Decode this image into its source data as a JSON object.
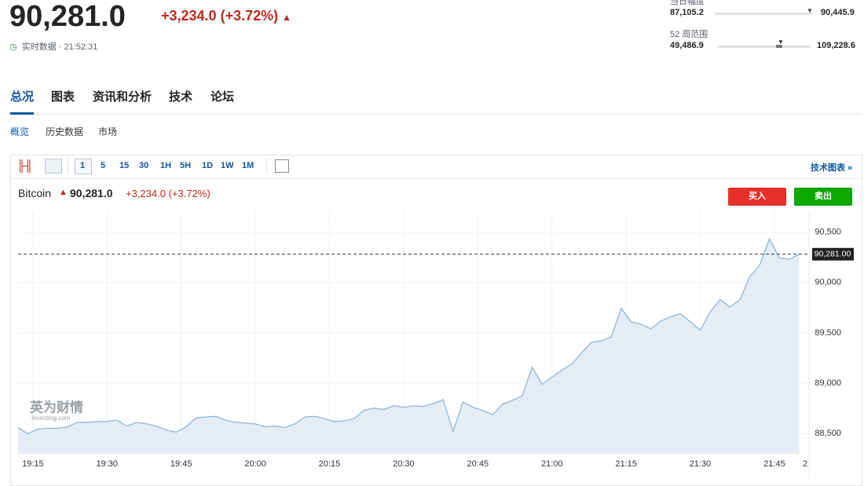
{
  "header": {
    "price": "90,281.0",
    "change": "+3,234.0 (+3.72%)",
    "status": "实时数据 · 21:52:31",
    "ranges": [
      {
        "label": "当日幅度",
        "low": "87,105.2",
        "high": "90,445.9"
      },
      {
        "label": "52 周范围",
        "low": "49,486.9",
        "high": "109,228.6"
      }
    ]
  },
  "tabs": [
    "总况",
    "图表",
    "资讯和分析",
    "技术",
    "论坛"
  ],
  "subtabs": [
    "概览",
    "历史数据",
    "市场"
  ],
  "toolbar": {
    "intervals": [
      "1",
      "5",
      "15",
      "30",
      "1H",
      "5H",
      "1D",
      "1W",
      "1M"
    ],
    "advanced": "技术图表 »"
  },
  "quote": {
    "name": "Bitcoin",
    "price": "90,281.0",
    "change": "+3,234.0 (+3.72%)"
  },
  "buttons": {
    "buy": "买入",
    "sell": "卖出"
  },
  "watermark": {
    "brand": "英为财情",
    "site": "Investing.com"
  },
  "chart_data": {
    "type": "area",
    "color": "#8fb6d6",
    "x": [
      "19:12",
      "19:14",
      "19:16",
      "19:18",
      "19:20",
      "19:22",
      "19:24",
      "19:26",
      "19:28",
      "19:30",
      "19:32",
      "19:34",
      "19:36",
      "19:38",
      "19:40",
      "19:42",
      "19:44",
      "19:46",
      "19:48",
      "19:50",
      "19:52",
      "19:54",
      "19:56",
      "19:58",
      "20:00",
      "20:02",
      "20:04",
      "20:06",
      "20:08",
      "20:10",
      "20:12",
      "20:14",
      "20:16",
      "20:18",
      "20:20",
      "20:22",
      "20:24",
      "20:26",
      "20:28",
      "20:30",
      "20:32",
      "20:34",
      "20:36",
      "20:38",
      "20:40",
      "20:42",
      "20:44",
      "20:46",
      "20:48",
      "20:50",
      "20:52",
      "20:54",
      "20:56",
      "20:58",
      "21:00",
      "21:02",
      "21:04",
      "21:06",
      "21:08",
      "21:10",
      "21:12",
      "21:14",
      "21:16",
      "21:18",
      "21:20",
      "21:22",
      "21:24",
      "21:26",
      "21:28",
      "21:30",
      "21:32",
      "21:34",
      "21:36",
      "21:38",
      "21:40",
      "21:42",
      "21:44",
      "21:46",
      "21:48",
      "21:50"
    ],
    "values": [
      88560,
      88500,
      88545,
      88553,
      88553,
      88568,
      88612,
      88612,
      88620,
      88620,
      88635,
      88575,
      88612,
      88597,
      88575,
      88537,
      88515,
      88568,
      88657,
      88665,
      88672,
      88635,
      88612,
      88605,
      88597,
      88568,
      88575,
      88560,
      88597,
      88665,
      88672,
      88650,
      88620,
      88627,
      88650,
      88732,
      88755,
      88740,
      88777,
      88762,
      88777,
      88770,
      88800,
      88837,
      88523,
      88815,
      88762,
      88732,
      88687,
      88792,
      88830,
      88875,
      89160,
      88987,
      89062,
      89130,
      89190,
      89302,
      89407,
      89422,
      89460,
      89744,
      89609,
      89587,
      89541,
      89616,
      89661,
      89691,
      89609,
      89526,
      89706,
      89833,
      89758,
      89826,
      90058,
      90170,
      90433,
      90245,
      90230,
      90281
    ],
    "xlim": [
      "19:12",
      "21:52"
    ],
    "ylim": [
      88300,
      90700
    ],
    "yticks": [
      {
        "value": 88500,
        "label": "88,500"
      },
      {
        "value": 89000,
        "label": "89,000"
      },
      {
        "value": 89500,
        "label": "89,500"
      },
      {
        "value": 90000,
        "label": "90,000"
      },
      {
        "value": 90500,
        "label": "90,500"
      }
    ],
    "xticks": [
      "19:15",
      "19:30",
      "19:45",
      "20:00",
      "20:15",
      "20:30",
      "20:45",
      "21:00",
      "21:15",
      "21:30",
      "21:45"
    ],
    "x_edge_label": "2",
    "last_price": {
      "value": 90281,
      "label": "90,281.00"
    }
  }
}
